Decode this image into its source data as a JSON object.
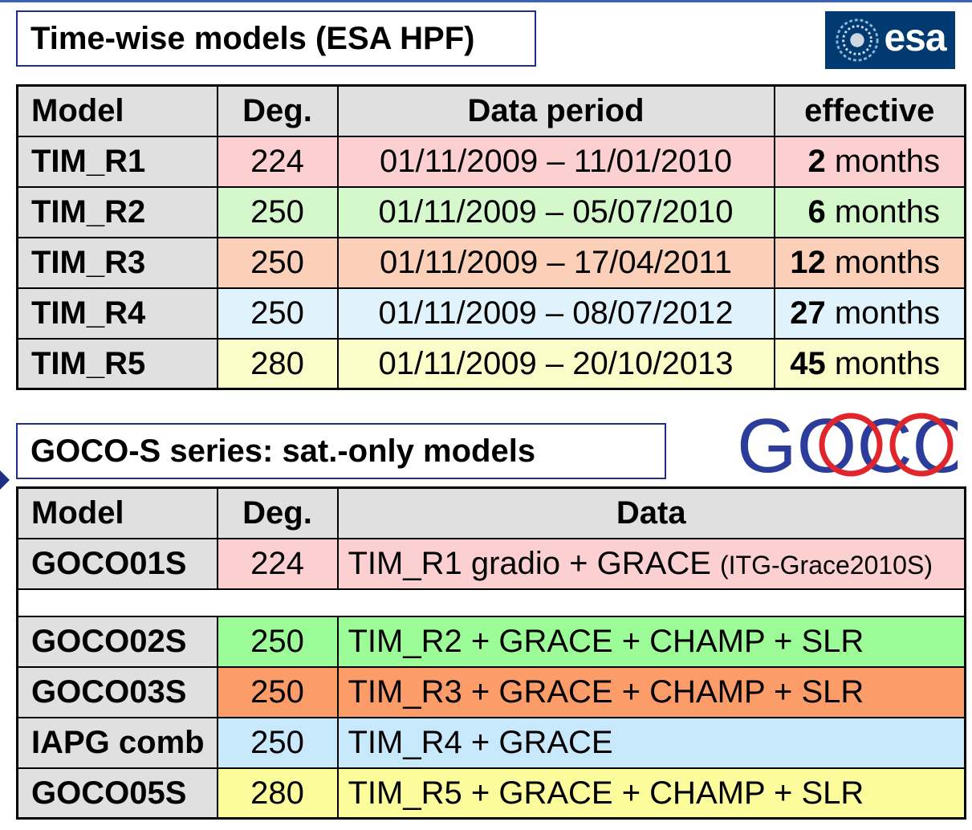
{
  "section1": {
    "title": "Time-wise models (ESA HPF)",
    "logo_text": "esa",
    "headers": [
      "Model",
      "Deg.",
      "Data period",
      "effective"
    ],
    "rows": [
      {
        "model": "TIM_R1",
        "deg": "224",
        "period": "01/11/2009 – 11/01/2010",
        "eff_num": "2",
        "eff_unit": " months",
        "color": "#fcd0d0"
      },
      {
        "model": "TIM_R2",
        "deg": "250",
        "period": "01/11/2009 – 05/07/2010",
        "eff_num": "6",
        "eff_unit": " months",
        "color": "#d4f8cc"
      },
      {
        "model": "TIM_R3",
        "deg": "250",
        "period": "01/11/2009 – 17/04/2011",
        "eff_num": "12",
        "eff_unit": " months",
        "color": "#fcd0b8"
      },
      {
        "model": "TIM_R4",
        "deg": "250",
        "period": "01/11/2009 – 08/07/2012",
        "eff_num": "27",
        "eff_unit": " months",
        "color": "#e0f2fc"
      },
      {
        "model": "TIM_R5",
        "deg": "280",
        "period": "01/11/2009 – 20/10/2013",
        "eff_num": "45",
        "eff_unit": " months",
        "color": "#fcfcc8"
      }
    ]
  },
  "section2": {
    "title": "GOCO-S series: sat.-only models",
    "logo_text": "GOCO",
    "headers": [
      "Model",
      "Deg.",
      "Data"
    ],
    "rows": [
      {
        "model": "GOCO01S",
        "deg": "224",
        "data": "TIM_R1 gradio + GRACE ",
        "data_small": "(ITG-Grace2010S)",
        "color": "#fcd0d0"
      },
      {
        "model": "GOCO02S",
        "deg": "250",
        "data": "TIM_R2 + GRACE + CHAMP + SLR",
        "data_small": "",
        "color": "#9cfc98"
      },
      {
        "model": "GOCO03S",
        "deg": "250",
        "data": "TIM_R3 + GRACE + CHAMP + SLR",
        "data_small": "",
        "color": "#fc9c68"
      },
      {
        "model": "IAPG comb",
        "deg": "250",
        "data": "TIM_R4 + GRACE",
        "data_small": "",
        "color": "#c8e8fc"
      },
      {
        "model": "GOCO05S",
        "deg": "280",
        "data": "TIM_R5 + GRACE + CHAMP + SLR",
        "data_small": "",
        "color": "#fcfc9c"
      }
    ]
  },
  "colors": {
    "border_blue": "#1f2f86",
    "esa_blue": "#003a70",
    "goco_blue": "#2b3c9a",
    "goco_red": "#e0262c"
  }
}
